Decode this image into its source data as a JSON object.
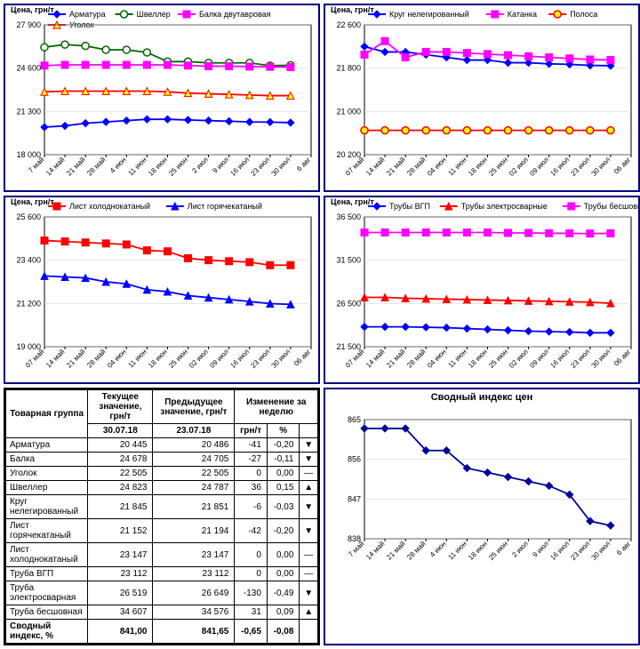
{
  "x_labels": [
    "7 май",
    "14 май",
    "21 май",
    "28 май",
    "4 июн",
    "11 июн",
    "18 июн",
    "25 июн",
    "2 июл",
    "9 июл",
    "16 июл",
    "23 июл",
    "30 июл",
    "6 авг"
  ],
  "x_labels07": [
    "07 май",
    "14 май",
    "21 май",
    "28 май",
    "04 июн",
    "11 июн",
    "18 июн",
    "25 июн",
    "02 июл",
    "09 июл",
    "16 июл",
    "23 июл",
    "30 июл",
    "06 авг"
  ],
  "chart1": {
    "y_title": "Цена, грн/т",
    "legend": [
      {
        "label": "Арматура",
        "color": "#0000ff",
        "marker": "diamond"
      },
      {
        "label": "Швеллер",
        "color": "#006600",
        "marker": "circle"
      },
      {
        "label": "Балка двутавровая",
        "color": "#ff00ff",
        "marker": "square"
      },
      {
        "label": "Уголок",
        "color": "#ff0000",
        "marker": "triangle",
        "fill": "#ffff00"
      }
    ],
    "ylim": [
      18000,
      27900
    ],
    "yticks": [
      18000,
      21300,
      24600,
      27900
    ],
    "series": {
      "armatura": [
        20100,
        20200,
        20400,
        20500,
        20600,
        20700,
        20700,
        20650,
        20600,
        20550,
        20500,
        20486,
        20445,
        null
      ],
      "shveller": [
        26200,
        26400,
        26300,
        26000,
        26000,
        25800,
        25100,
        25100,
        25000,
        25000,
        25000,
        24787,
        24823,
        null
      ],
      "balka": [
        24800,
        24850,
        24850,
        24850,
        24850,
        24850,
        24850,
        24800,
        24750,
        24750,
        24720,
        24705,
        24678,
        null
      ],
      "ugolok": [
        22800,
        22850,
        22850,
        22850,
        22850,
        22850,
        22800,
        22700,
        22650,
        22600,
        22550,
        22505,
        22505,
        null
      ]
    }
  },
  "chart2": {
    "y_title": "Цена, грн/т",
    "legend": [
      {
        "label": "Круг нелегированный",
        "color": "#0000ff",
        "marker": "diamond"
      },
      {
        "label": "Катанка",
        "color": "#ff00ff",
        "marker": "square"
      },
      {
        "label": "Полоса",
        "color": "#ff0000",
        "marker": "circle",
        "fill": "#ffff00"
      }
    ],
    "ylim": [
      20200,
      22600
    ],
    "yticks": [
      20200,
      21000,
      21800,
      22600
    ],
    "series": {
      "krug": [
        22200,
        22100,
        22100,
        22050,
        22000,
        21950,
        21950,
        21900,
        21900,
        21880,
        21870,
        21851,
        21845,
        null
      ],
      "katanka": [
        22050,
        22300,
        22000,
        22100,
        22100,
        22080,
        22060,
        22040,
        22020,
        22000,
        21980,
        21960,
        21950,
        null
      ],
      "polosa": [
        20650,
        20650,
        20650,
        20650,
        20650,
        20650,
        20650,
        20650,
        20650,
        20650,
        20650,
        20650,
        20650,
        null
      ]
    }
  },
  "chart3": {
    "y_title": "Цена, грн/т",
    "legend": [
      {
        "label": "Лист холоднокатаный",
        "color": "#ff0000",
        "marker": "square"
      },
      {
        "label": "Лист горячекатаный",
        "color": "#0000ff",
        "marker": "triangle"
      }
    ],
    "ylim": [
      19000,
      25600
    ],
    "yticks": [
      19000,
      21200,
      23400,
      25600
    ],
    "series": {
      "holod": [
        24400,
        24350,
        24300,
        24250,
        24200,
        23900,
        23850,
        23500,
        23400,
        23350,
        23300,
        23147,
        23147,
        null
      ],
      "gorjach": [
        22600,
        22550,
        22500,
        22300,
        22200,
        21900,
        21800,
        21600,
        21500,
        21400,
        21300,
        21194,
        21152,
        null
      ]
    }
  },
  "chart4": {
    "y_title": "Цена, грн/т",
    "legend": [
      {
        "label": "Трубы ВГП",
        "color": "#0000ff",
        "marker": "diamond"
      },
      {
        "label": "Трубы электросварные",
        "color": "#ff0000",
        "marker": "triangle"
      },
      {
        "label": "Трубы бесшовные",
        "color": "#ff00ff",
        "marker": "square"
      }
    ],
    "ylim": [
      21500,
      36500
    ],
    "yticks": [
      21500,
      26500,
      31500,
      36500
    ],
    "series": {
      "vgp": [
        23800,
        23800,
        23800,
        23750,
        23700,
        23600,
        23500,
        23400,
        23300,
        23250,
        23200,
        23112,
        23112,
        null
      ],
      "elektro": [
        27200,
        27200,
        27100,
        27050,
        27000,
        26950,
        26900,
        26850,
        26800,
        26750,
        26700,
        26649,
        26519,
        null
      ],
      "besshov": [
        34700,
        34700,
        34700,
        34700,
        34700,
        34700,
        34700,
        34650,
        34650,
        34620,
        34600,
        34576,
        34607,
        null
      ]
    }
  },
  "chart5": {
    "title": "Сводный индекс цен",
    "ylim": [
      838,
      865
    ],
    "yticks": [
      838,
      847,
      856,
      865
    ],
    "color": "#000099",
    "marker": "diamond",
    "values": [
      863,
      863,
      863,
      858,
      858,
      854,
      853,
      852,
      851,
      850,
      848,
      842,
      841,
      null
    ]
  },
  "table": {
    "headers": {
      "c1": "Товарная группа",
      "c2": "Текущее значение, грн/т",
      "c2d": "30.07.18",
      "c3": "Предыдущее значение, грн/т",
      "c3d": "23.07.18",
      "c4": "Изменение за неделю",
      "c4a": "грн/т",
      "c4b": "%"
    },
    "rows": [
      {
        "label": "Арматура",
        "cur": "20 445",
        "prev": "20 486",
        "d": "-41",
        "p": "-0,20",
        "a": "▼"
      },
      {
        "label": "Балка",
        "cur": "24 678",
        "prev": "24 705",
        "d": "-27",
        "p": "-0,11",
        "a": "▼"
      },
      {
        "label": "Уголок",
        "cur": "22 505",
        "prev": "22 505",
        "d": "0",
        "p": "0,00",
        "a": "—"
      },
      {
        "label": "Швеллер",
        "cur": "24 823",
        "prev": "24 787",
        "d": "36",
        "p": "0,15",
        "a": "▲"
      },
      {
        "label": "Круг нелегированный",
        "cur": "21 845",
        "prev": "21 851",
        "d": "-6",
        "p": "-0,03",
        "a": "▼"
      },
      {
        "label": "Лист горячекатаный",
        "cur": "21 152",
        "prev": "21 194",
        "d": "-42",
        "p": "-0,20",
        "a": "▼"
      },
      {
        "label": "Лист холоднокатаный",
        "cur": "23 147",
        "prev": "23 147",
        "d": "0",
        "p": "0,00",
        "a": "—"
      },
      {
        "label": "Труба ВГП",
        "cur": "23 112",
        "prev": "23 112",
        "d": "0",
        "p": "0,00",
        "a": "—"
      },
      {
        "label": "Труба электросварная",
        "cur": "26 519",
        "prev": "26 649",
        "d": "-130",
        "p": "-0,49",
        "a": "▼"
      },
      {
        "label": "Труба бесшовная",
        "cur": "34 607",
        "prev": "34 576",
        "d": "31",
        "p": "0,09",
        "a": "▲"
      }
    ],
    "summary": {
      "label": "Сводный индекс, %",
      "cur": "841,00",
      "prev": "841,65",
      "d": "-0,65",
      "p": "-0,08",
      "a": ""
    }
  }
}
